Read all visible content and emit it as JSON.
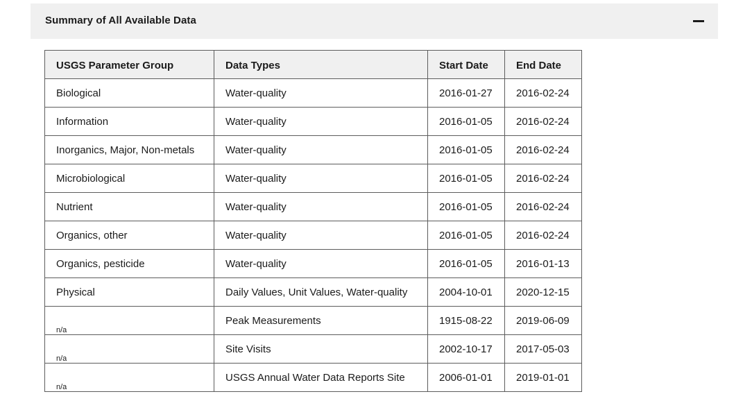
{
  "accordion": {
    "title": "Summary of All Available Data",
    "expanded": true,
    "toggle_icon": "minus-icon"
  },
  "table": {
    "headers": [
      "USGS Parameter Group",
      "Data Types",
      "Start Date",
      "End Date"
    ],
    "rows": [
      {
        "group": "Biological",
        "types": "Water-quality",
        "start": "2016-01-27",
        "end": "2016-02-24"
      },
      {
        "group": "Information",
        "types": "Water-quality",
        "start": "2016-01-05",
        "end": "2016-02-24"
      },
      {
        "group": "Inorganics, Major, Non-metals",
        "types": "Water-quality",
        "start": "2016-01-05",
        "end": "2016-02-24"
      },
      {
        "group": "Microbiological",
        "types": "Water-quality",
        "start": "2016-01-05",
        "end": "2016-02-24"
      },
      {
        "group": "Nutrient",
        "types": "Water-quality",
        "start": "2016-01-05",
        "end": "2016-02-24"
      },
      {
        "group": "Organics, other",
        "types": "Water-quality",
        "start": "2016-01-05",
        "end": "2016-02-24"
      },
      {
        "group": "Organics, pesticide",
        "types": "Water-quality",
        "start": "2016-01-05",
        "end": "2016-01-13"
      },
      {
        "group": "Physical",
        "types": "Daily Values, Unit Values, Water-quality",
        "start": "2004-10-01",
        "end": "2020-12-15"
      },
      {
        "group": "n/a",
        "types": "Peak Measurements",
        "start": "1915-08-22",
        "end": "2019-06-09"
      },
      {
        "group": "n/a",
        "types": "Site Visits",
        "start": "2002-10-17",
        "end": "2017-05-03"
      },
      {
        "group": "n/a",
        "types": "USGS Annual Water Data Reports Site",
        "start": "2006-01-01",
        "end": "2019-01-01"
      }
    ]
  }
}
